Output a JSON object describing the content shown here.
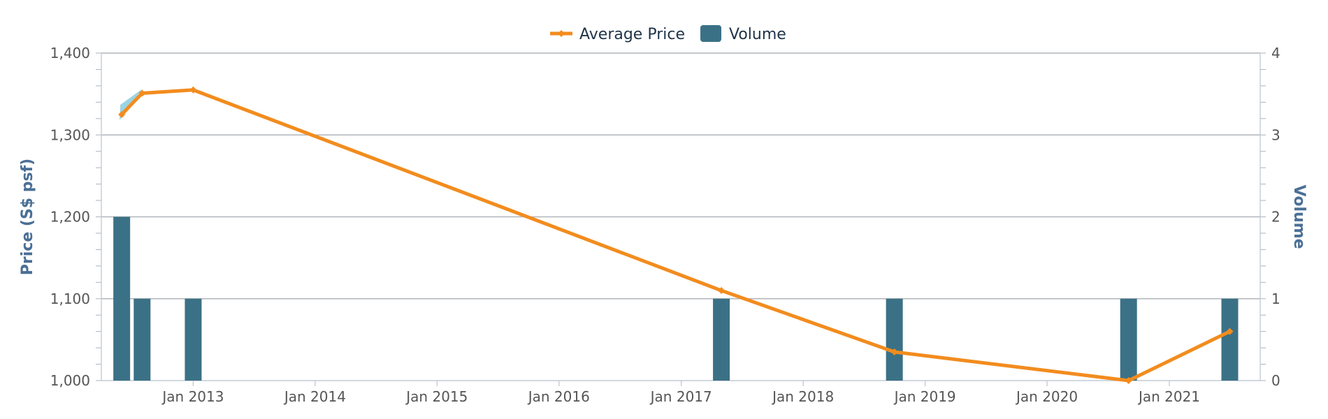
{
  "chart_data": {
    "type": "line",
    "legend": {
      "position": "top-center",
      "items": [
        "Average Price",
        "Volume"
      ]
    },
    "colors": {
      "price": "#f28c1e",
      "volume": "#3b7186",
      "band": "#8fcfe0",
      "axis_title": "#4a6f95",
      "grid": "#b0b5ba"
    },
    "x_axis": {
      "type": "datetime",
      "range": [
        "2012-04-01",
        "2021-09-30"
      ],
      "tick_labels": [
        "Jan 2013",
        "Jan 2014",
        "Jan 2015",
        "Jan 2016",
        "Jan 2017",
        "Jan 2018",
        "Jan 2019",
        "Jan 2020",
        "Jan 2021"
      ],
      "tick_dates": [
        "2013-01-01",
        "2014-01-01",
        "2015-01-01",
        "2016-01-01",
        "2017-01-01",
        "2018-01-01",
        "2019-01-01",
        "2020-01-01",
        "2021-01-01"
      ]
    },
    "y_axis_left": {
      "label": "Price (S$ psf)",
      "range": [
        1000,
        1400
      ],
      "ticks": [
        1000,
        1100,
        1200,
        1300,
        1400
      ],
      "tick_labels": [
        "1,000",
        "1,100",
        "1,200",
        "1,300",
        "1,400"
      ]
    },
    "y_axis_right": {
      "label": "Volume",
      "range": [
        0,
        4
      ],
      "ticks": [
        0,
        1,
        2,
        3,
        4
      ],
      "tick_labels": [
        "0",
        "1",
        "2",
        "3",
        "4"
      ]
    },
    "grid": true,
    "series": [
      {
        "name": "Average Price",
        "type": "line",
        "axis": "left",
        "points": [
          {
            "x": "2012-06-01",
            "y": 1325
          },
          {
            "x": "2012-08-01",
            "y": 1351
          },
          {
            "x": "2013-01-01",
            "y": 1355
          },
          {
            "x": "2017-05-01",
            "y": 1110
          },
          {
            "x": "2018-10-01",
            "y": 1035
          },
          {
            "x": "2020-09-01",
            "y": 1000
          },
          {
            "x": "2021-07-01",
            "y": 1060
          }
        ]
      },
      {
        "name": "Volume",
        "type": "column",
        "axis": "right",
        "points": [
          {
            "x": "2012-06-01",
            "y": 2
          },
          {
            "x": "2012-08-01",
            "y": 1
          },
          {
            "x": "2013-01-01",
            "y": 1
          },
          {
            "x": "2017-05-01",
            "y": 1
          },
          {
            "x": "2018-10-01",
            "y": 1
          },
          {
            "x": "2020-09-01",
            "y": 1
          },
          {
            "x": "2021-07-01",
            "y": 1
          }
        ]
      }
    ]
  }
}
